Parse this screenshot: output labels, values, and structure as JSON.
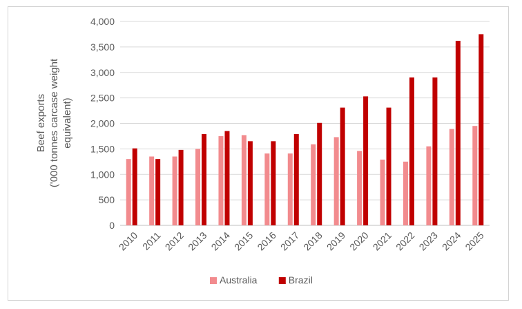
{
  "chart_data": {
    "type": "bar",
    "title": "",
    "xlabel": "",
    "ylabel_lines": [
      "Beef exports",
      "('000 tonnes carcase weight",
      "equivalent)"
    ],
    "categories": [
      "2010",
      "2011",
      "2012",
      "2013",
      "2014",
      "2015",
      "2016",
      "2017",
      "2018",
      "2019",
      "2020",
      "2021",
      "2022",
      "2023",
      "2024",
      "2025"
    ],
    "series": [
      {
        "name": "Australia",
        "color": "#f28b8e",
        "values": [
          1300,
          1350,
          1350,
          1500,
          1750,
          1770,
          1410,
          1410,
          1590,
          1730,
          1460,
          1290,
          1250,
          1550,
          1890,
          1950
        ]
      },
      {
        "name": "Brazil",
        "color": "#c00000",
        "values": [
          1510,
          1300,
          1480,
          1790,
          1850,
          1650,
          1650,
          1790,
          2010,
          2310,
          2530,
          2310,
          2900,
          2900,
          3620,
          3750
        ]
      }
    ],
    "ylim": [
      0,
      4000
    ],
    "yticks": [
      0,
      500,
      1000,
      1500,
      2000,
      2500,
      3000,
      3500,
      4000
    ],
    "ytick_labels": [
      "0",
      "500",
      "1,000",
      "1,500",
      "2,000",
      "2,500",
      "3,000",
      "3,500",
      "4,000"
    ],
    "grid": true,
    "legend_position": "bottom"
  }
}
